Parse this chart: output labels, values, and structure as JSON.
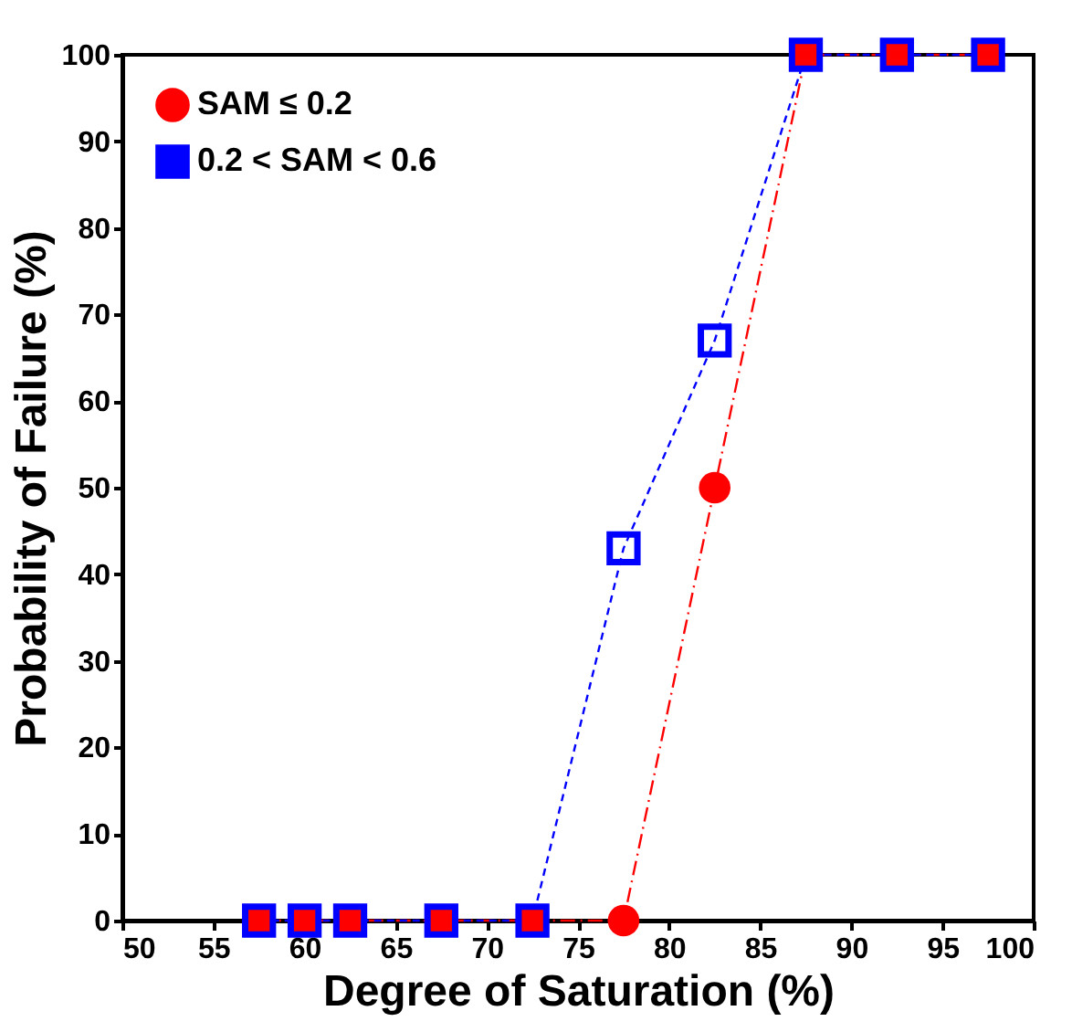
{
  "chart_data": {
    "type": "line",
    "xlabel": "Degree of Saturation (%)",
    "ylabel": "Probability of Failure (%)",
    "x": [
      57.5,
      60,
      62.5,
      67.5,
      72.5,
      77.5,
      82.5,
      87.5,
      92.5,
      97.5
    ],
    "series": [
      {
        "name": "SAM ≤ 0.2",
        "color": "#ff0000",
        "marker": "circle",
        "line_style": "dashed",
        "values": [
          0,
          0,
          0,
          0,
          0,
          0,
          50,
          100,
          100,
          100
        ]
      },
      {
        "name": "0.2 < SAM < 0.6",
        "color": "#0000ff",
        "marker": "square",
        "line_style": "dashed",
        "values": [
          0,
          0,
          0,
          0,
          0,
          43,
          67,
          100,
          100,
          100
        ]
      }
    ],
    "xlim": [
      50,
      100
    ],
    "ylim": [
      0,
      100
    ],
    "xticks": [
      50,
      55,
      60,
      65,
      70,
      75,
      80,
      85,
      90,
      95,
      100
    ],
    "yticks": [
      0,
      10,
      20,
      30,
      40,
      50,
      60,
      70,
      80,
      90,
      100
    ],
    "grid": false,
    "legend": "top left"
  }
}
